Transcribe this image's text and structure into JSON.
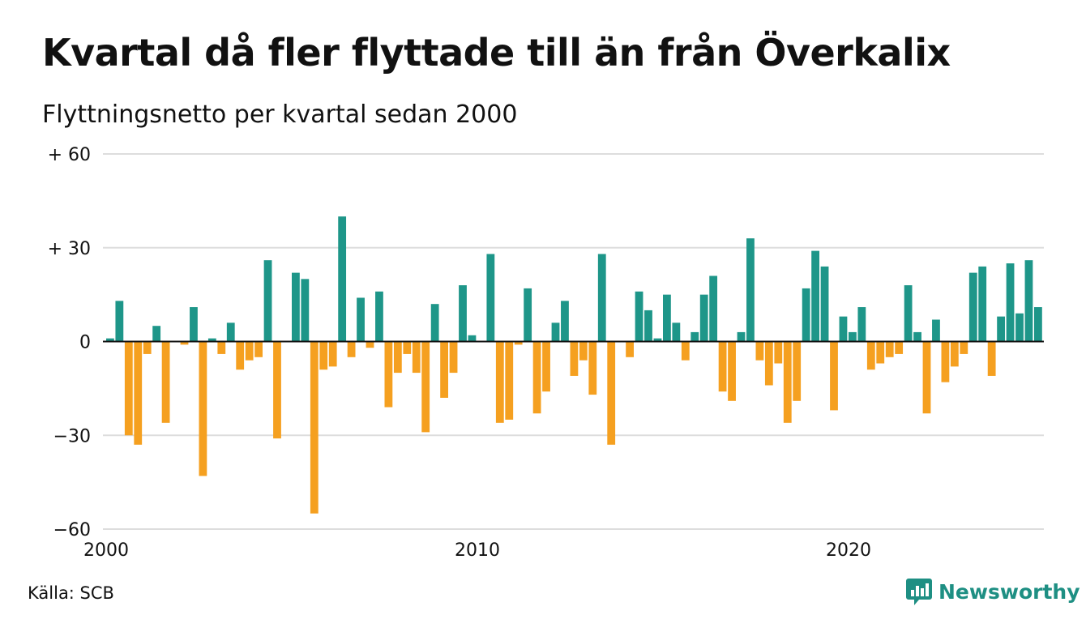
{
  "title": "Kvartal då fler flyttade till än från Överkalix",
  "subtitle": "Flyttningsnetto per kvartal sedan 2000",
  "source": "Källa: SCB",
  "brand": {
    "name": "Newsworthy",
    "icon": "bar-chart-speech-bubble-icon",
    "color": "#1e8f83"
  },
  "chart_data": {
    "type": "bar",
    "x_start": "2000 Q1",
    "x_ticks": [
      {
        "label": "2000",
        "year": 2000
      },
      {
        "label": "2010",
        "year": 2010
      },
      {
        "label": "2020",
        "year": 2020
      }
    ],
    "y_ticks": [
      {
        "label": "+ 60",
        "value": 60
      },
      {
        "label": "+ 30",
        "value": 30
      },
      {
        "label": "0",
        "value": 0
      },
      {
        "label": "−30",
        "value": -30
      },
      {
        "label": "−60",
        "value": -60
      }
    ],
    "ylim": [
      -60,
      60
    ],
    "grid": true,
    "colors": {
      "positive": "#1e9689",
      "negative": "#f5a020",
      "grid": "#dddddd"
    },
    "values": [
      1,
      13,
      -30,
      -33,
      -4,
      5,
      -26,
      0,
      -1,
      11,
      -43,
      1,
      -4,
      6,
      -9,
      -6,
      -5,
      26,
      -31,
      0,
      22,
      20,
      -55,
      -9,
      -8,
      40,
      -5,
      14,
      -2,
      16,
      -21,
      -10,
      -4,
      -10,
      -29,
      12,
      -18,
      -10,
      18,
      2,
      0,
      28,
      -26,
      -25,
      -1,
      17,
      -23,
      -16,
      6,
      13,
      -11,
      -6,
      -17,
      28,
      -33,
      0,
      -5,
      16,
      10,
      1,
      15,
      6,
      -6,
      3,
      15,
      21,
      -16,
      -19,
      3,
      33,
      -6,
      -14,
      -7,
      -26,
      -19,
      17,
      29,
      24,
      -22,
      8,
      3,
      11,
      -9,
      -7,
      -5,
      -4,
      18,
      3,
      -23,
      7,
      -13,
      -8,
      -4,
      22,
      24,
      -11,
      8,
      25,
      9,
      26,
      11
    ]
  }
}
